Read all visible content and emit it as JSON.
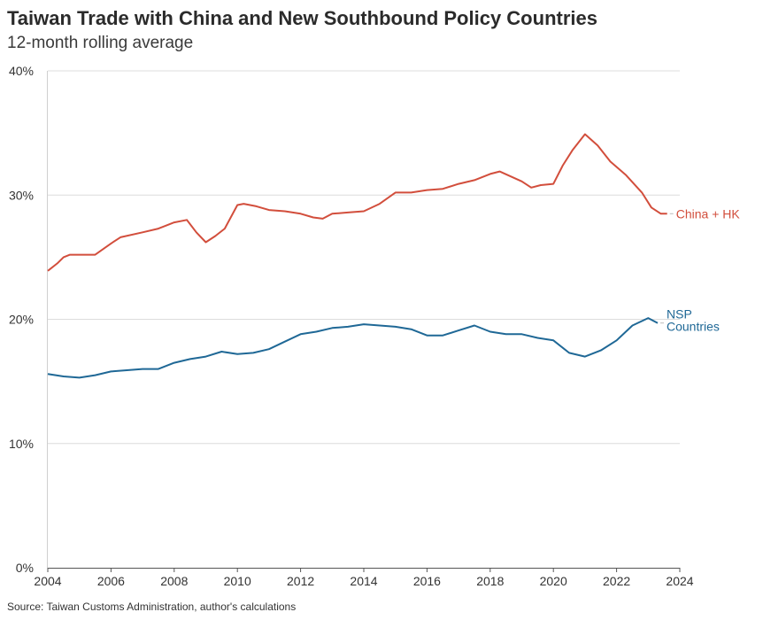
{
  "title": "Taiwan Trade with China and New Southbound Policy Countries",
  "subtitle": "12-month rolling average",
  "source": "Source: Taiwan Customs Administration, author's calculations",
  "chart_data": {
    "type": "line",
    "xlim": [
      2004,
      2024
    ],
    "ylim": [
      0,
      40
    ],
    "x_ticks": [
      "2004",
      "2006",
      "2008",
      "2010",
      "2012",
      "2014",
      "2016",
      "2018",
      "2020",
      "2022",
      "2024"
    ],
    "y_ticks": [
      "0%",
      "10%",
      "20%",
      "30%",
      "40%"
    ],
    "grid": "horizontal",
    "legend": "direct labels at line ends",
    "series": [
      {
        "name": "China + HK",
        "label_lines": [
          "China + HK"
        ],
        "color": "#d24e3c",
        "x": [
          2004.0,
          2004.3,
          2004.5,
          2004.7,
          2005.0,
          2005.5,
          2006.0,
          2006.3,
          2007.0,
          2007.5,
          2008.0,
          2008.4,
          2008.7,
          2009.0,
          2009.3,
          2009.6,
          2010.0,
          2010.2,
          2010.6,
          2011.0,
          2011.5,
          2012.0,
          2012.4,
          2012.7,
          2013.0,
          2013.5,
          2014.0,
          2014.5,
          2015.0,
          2015.5,
          2016.0,
          2016.5,
          2017.0,
          2017.5,
          2018.0,
          2018.3,
          2019.0,
          2019.3,
          2019.6,
          2020.0,
          2020.3,
          2020.6,
          2021.0,
          2021.4,
          2021.8,
          2022.3,
          2022.8,
          2023.1,
          2023.4,
          2023.6
        ],
        "y": [
          23.9,
          24.5,
          25.0,
          25.2,
          25.2,
          25.2,
          26.1,
          26.6,
          27.0,
          27.3,
          27.8,
          28.0,
          27.0,
          26.2,
          26.7,
          27.3,
          29.2,
          29.3,
          29.1,
          28.8,
          28.7,
          28.5,
          28.2,
          28.1,
          28.5,
          28.6,
          28.7,
          29.3,
          30.2,
          30.2,
          30.4,
          30.5,
          30.9,
          31.2,
          31.7,
          31.9,
          31.1,
          30.6,
          30.8,
          30.9,
          32.4,
          33.6,
          34.9,
          34.0,
          32.7,
          31.6,
          30.2,
          29.0,
          28.5,
          28.5
        ]
      },
      {
        "name": "NSP Countries",
        "label_lines": [
          "NSP",
          "Countries"
        ],
        "color": "#1f6896",
        "x": [
          2004.0,
          2004.5,
          2005.0,
          2005.5,
          2006.0,
          2006.5,
          2007.0,
          2007.5,
          2008.0,
          2008.5,
          2009.0,
          2009.5,
          2010.0,
          2010.5,
          2011.0,
          2011.5,
          2012.0,
          2012.5,
          2013.0,
          2013.5,
          2014.0,
          2014.5,
          2015.0,
          2015.5,
          2016.0,
          2016.5,
          2017.0,
          2017.5,
          2018.0,
          2018.5,
          2019.0,
          2019.5,
          2020.0,
          2020.5,
          2021.0,
          2021.5,
          2022.0,
          2022.5,
          2023.0,
          2023.3
        ],
        "y": [
          15.6,
          15.4,
          15.3,
          15.5,
          15.8,
          15.9,
          16.0,
          16.0,
          16.5,
          16.8,
          17.0,
          17.4,
          17.2,
          17.3,
          17.6,
          18.2,
          18.8,
          19.0,
          19.3,
          19.4,
          19.6,
          19.5,
          19.4,
          19.2,
          18.7,
          18.7,
          19.1,
          19.5,
          19.0,
          18.8,
          18.8,
          18.5,
          18.3,
          17.3,
          17.0,
          17.5,
          18.3,
          19.5,
          20.1,
          19.7
        ]
      }
    ]
  }
}
